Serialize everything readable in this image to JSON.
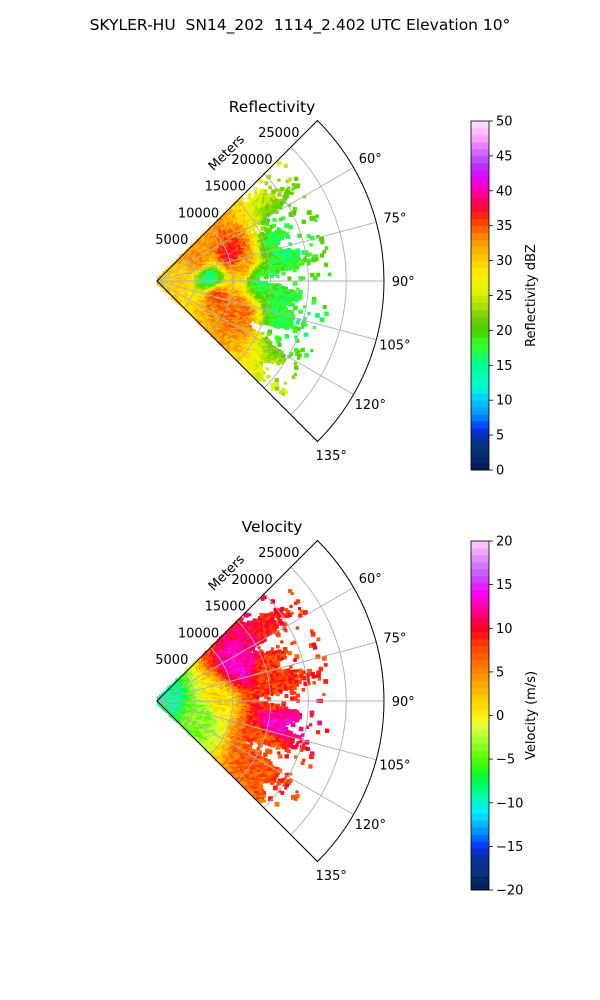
{
  "suptitle": "SKYLER-HU  SN14_202  1114_2.402 UTC Elevation 10°",
  "chart_data": [
    {
      "type": "polar-sector",
      "title": "Reflectivity",
      "r_axis_label": "Meters",
      "r_ticks": [
        5000,
        10000,
        15000,
        20000,
        25000
      ],
      "r_tick_labels": [
        "5000",
        "10000",
        "15000",
        "20000",
        "25000"
      ],
      "r_max": 30000,
      "theta_range_deg": [
        45,
        135
      ],
      "theta_ticks": [
        60,
        75,
        90,
        105,
        120,
        135
      ],
      "theta_tick_labels": [
        "60°",
        "75°",
        "90°",
        "105°",
        "120°",
        "135°"
      ],
      "grid": true,
      "colorbar": {
        "label": "Reflectivity dBZ",
        "range": [
          0,
          50
        ],
        "ticks": [
          0,
          5,
          10,
          15,
          20,
          25,
          30,
          35,
          40,
          45,
          50
        ],
        "tick_labels": [
          "0",
          "5",
          "10",
          "15",
          "20",
          "25",
          "30",
          "35",
          "40",
          "45",
          "50"
        ]
      },
      "field_extent_m": 20000,
      "blobs": [
        {
          "theta": 90,
          "r": 3000,
          "value": 30
        },
        {
          "theta": 66,
          "r": 6000,
          "value": 33
        },
        {
          "theta": 72,
          "r": 10500,
          "value": 37
        },
        {
          "theta": 80,
          "r": 11500,
          "value": 32
        },
        {
          "theta": 104,
          "r": 8000,
          "value": 35
        },
        {
          "theta": 112,
          "r": 11500,
          "value": 34
        },
        {
          "theta": 90,
          "r": 14000,
          "value": 17
        },
        {
          "theta": 90,
          "r": 7000,
          "value": 15
        },
        {
          "theta": 75,
          "r": 17000,
          "value": 17
        },
        {
          "theta": 105,
          "r": 17500,
          "value": 17
        }
      ]
    },
    {
      "type": "polar-sector",
      "title": "Velocity",
      "r_axis_label": "Meters",
      "r_ticks": [
        5000,
        10000,
        15000,
        20000,
        25000
      ],
      "r_tick_labels": [
        "5000",
        "10000",
        "15000",
        "20000",
        "25000"
      ],
      "r_max": 30000,
      "theta_range_deg": [
        45,
        135
      ],
      "theta_ticks": [
        60,
        75,
        90,
        105,
        120,
        135
      ],
      "theta_tick_labels": [
        "60°",
        "75°",
        "90°",
        "105°",
        "120°",
        "135°"
      ],
      "grid": true,
      "colorbar": {
        "label": "Velocity (m/s)",
        "range": [
          -20,
          20
        ],
        "ticks": [
          -20,
          -15,
          -10,
          -5,
          0,
          5,
          10,
          15,
          20
        ],
        "tick_labels": [
          "−20",
          "−15",
          "−10",
          "−5",
          "0",
          "5",
          "10",
          "15",
          "20"
        ]
      },
      "field_extent_m": 20000,
      "blobs": [
        {
          "theta": 90,
          "r": 1500,
          "value": -9
        },
        {
          "theta": 110,
          "r": 6000,
          "value": -4
        },
        {
          "theta": 90,
          "r": 8000,
          "value": 1
        },
        {
          "theta": 68,
          "r": 12000,
          "value": 13
        },
        {
          "theta": 75,
          "r": 15000,
          "value": 8
        },
        {
          "theta": 90,
          "r": 15500,
          "value": 8
        },
        {
          "theta": 100,
          "r": 16000,
          "value": 13
        },
        {
          "theta": 112,
          "r": 15000,
          "value": 7
        }
      ]
    }
  ]
}
